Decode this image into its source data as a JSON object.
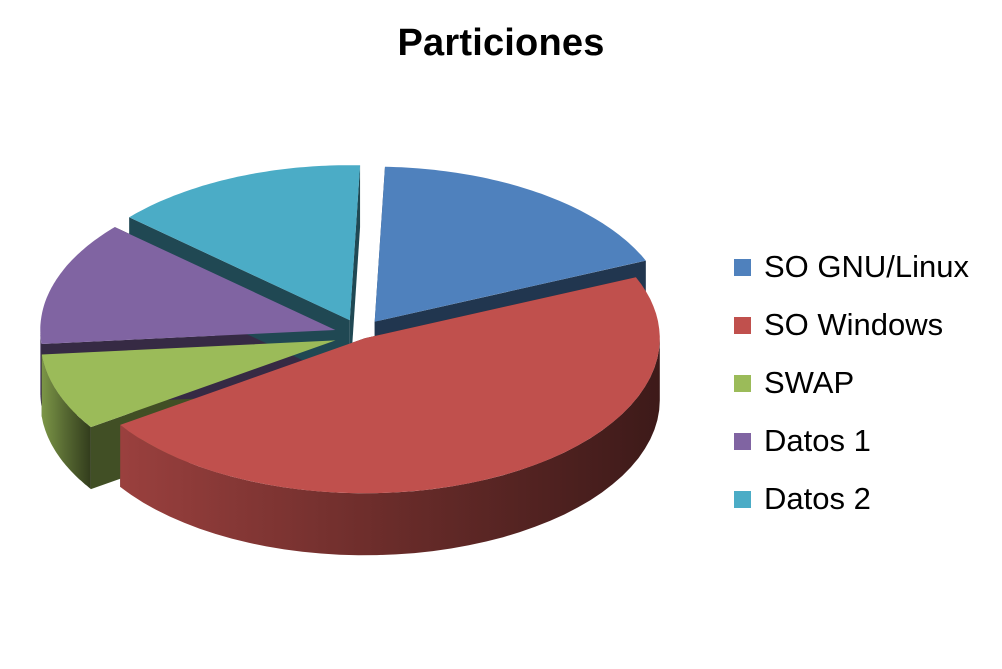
{
  "chart_data": {
    "type": "pie",
    "style": "3d-exploded",
    "title": "Particiones",
    "legend_position": "right",
    "categories": [
      "SO GNU/Linux",
      "SO Windows",
      "SWAP",
      "Datos 1",
      "Datos 2"
    ],
    "values": [
      18,
      47,
      8,
      13,
      14
    ],
    "colors": [
      "#4F81BD",
      "#C0504D",
      "#9BBB59",
      "#8064A2",
      "#4BACC6"
    ]
  }
}
